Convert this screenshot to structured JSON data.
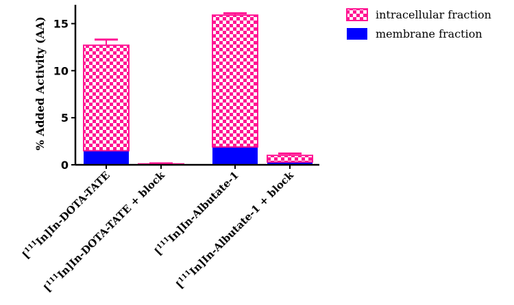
{
  "chart_data": {
    "type": "bar",
    "stacked": true,
    "title": "",
    "xlabel": "",
    "ylabel": "% Added Activity (AA)",
    "ylim": [
      0,
      17
    ],
    "yticks": [
      0,
      5,
      10,
      15
    ],
    "categories": [
      {
        "sup": "111",
        "text": "In]In-DOTA-TATE"
      },
      {
        "sup": "111",
        "text": "In]In-DOTA-TATE + block"
      },
      {
        "sup": "111",
        "text": "In]In-Albutate-1"
      },
      {
        "sup": "111",
        "text": "In]In-Albutate-1 + block"
      }
    ],
    "series": [
      {
        "name": "membrane fraction",
        "color": "#0000ff",
        "pattern": "solid",
        "values": [
          1.5,
          0.05,
          1.9,
          0.3
        ]
      },
      {
        "name": "intracellular fraction",
        "color": "#ff1493",
        "pattern": "checkerboard",
        "values": [
          11.2,
          0.05,
          14.0,
          0.7
        ]
      }
    ],
    "totals_error": [
      0.6,
      0.05,
      0.2,
      0.2
    ],
    "legend_position": "top-right",
    "grid": false
  }
}
